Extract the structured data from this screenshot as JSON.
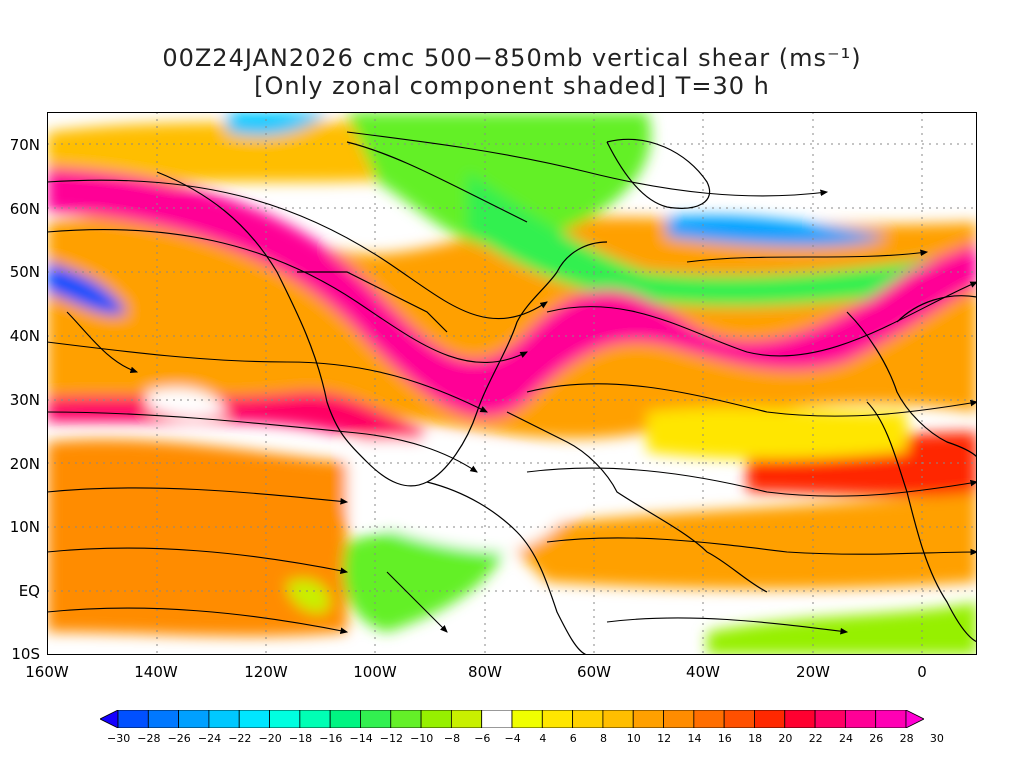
{
  "title": {
    "line1": "00Z24JAN2026 cmc 500−850mb vertical shear (ms⁻¹)",
    "line2": "[Only zonal component shaded] T=30 h"
  },
  "axes": {
    "lat_labels": [
      "70N",
      "60N",
      "50N",
      "40N",
      "30N",
      "20N",
      "10N",
      "EQ",
      "10S"
    ],
    "lat_values": [
      70,
      60,
      50,
      40,
      30,
      20,
      10,
      0,
      -10
    ],
    "lon_labels": [
      "160W",
      "140W",
      "120W",
      "100W",
      "80W",
      "60W",
      "40W",
      "20W",
      "0"
    ],
    "lon_values": [
      -160,
      -140,
      -120,
      -100,
      -80,
      -60,
      -40,
      -20,
      0
    ],
    "lat_range": [
      -10,
      75
    ],
    "lon_range": [
      -160,
      10
    ]
  },
  "colorbar": {
    "labels": [
      "−30",
      "−28",
      "−26",
      "−24",
      "−22",
      "−20",
      "−18",
      "−16",
      "−14",
      "−12",
      "−10",
      "−8",
      "−6",
      "−4",
      "4",
      "6",
      "8",
      "10",
      "12",
      "14",
      "16",
      "18",
      "20",
      "22",
      "24",
      "26",
      "28",
      "30"
    ],
    "colors": [
      "#1400ff",
      "#0050ff",
      "#0078ff",
      "#00a0ff",
      "#00c8ff",
      "#00e6ff",
      "#00ffe0",
      "#00ffb4",
      "#00f582",
      "#32f050",
      "#64f028",
      "#96f000",
      "#c8f000",
      "#ffffff",
      "#f0ff00",
      "#ffe600",
      "#ffd200",
      "#ffbe00",
      "#ffa000",
      "#ff8c00",
      "#ff6e00",
      "#ff5000",
      "#ff2800",
      "#ff0030",
      "#ff0064",
      "#ff0096",
      "#ff00b4",
      "#ff00d2"
    ]
  },
  "legend_label": ""
}
